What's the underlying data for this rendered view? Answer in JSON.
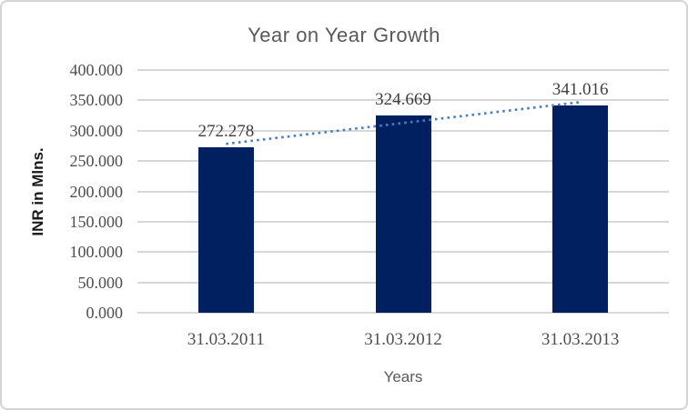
{
  "chart": {
    "colors": {
      "bar": "#002060",
      "trendline": "#4a7ebb",
      "gridline": "#d7d7d7",
      "border": "#d4d4d4",
      "title_text": "#595959",
      "tick_text": "#4f4f4f",
      "data_label_text": "#3f3f3f",
      "x_axis_title_text": "#595959",
      "y_axis_title_text": "#1a1a1a"
    }
  },
  "chart_data": {
    "type": "bar",
    "title": "Year on Year Growth",
    "xlabel": "Years",
    "ylabel": "INR in Mlns.",
    "categories": [
      "31.03.2011",
      "31.03.2012",
      "31.03.2013"
    ],
    "values": [
      272.278,
      324.669,
      341.016
    ],
    "value_labels": [
      "272.278",
      "324.669",
      "341.016"
    ],
    "ylim": [
      0,
      400
    ],
    "ytick_step": 50,
    "ytick_labels": [
      "0.000",
      "50.000",
      "100.000",
      "150.000",
      "200.000",
      "250.000",
      "300.000",
      "350.000",
      "400.000"
    ],
    "grid": true,
    "legend": "none",
    "trendline": {
      "style": "dotted",
      "fit": "linear"
    }
  }
}
